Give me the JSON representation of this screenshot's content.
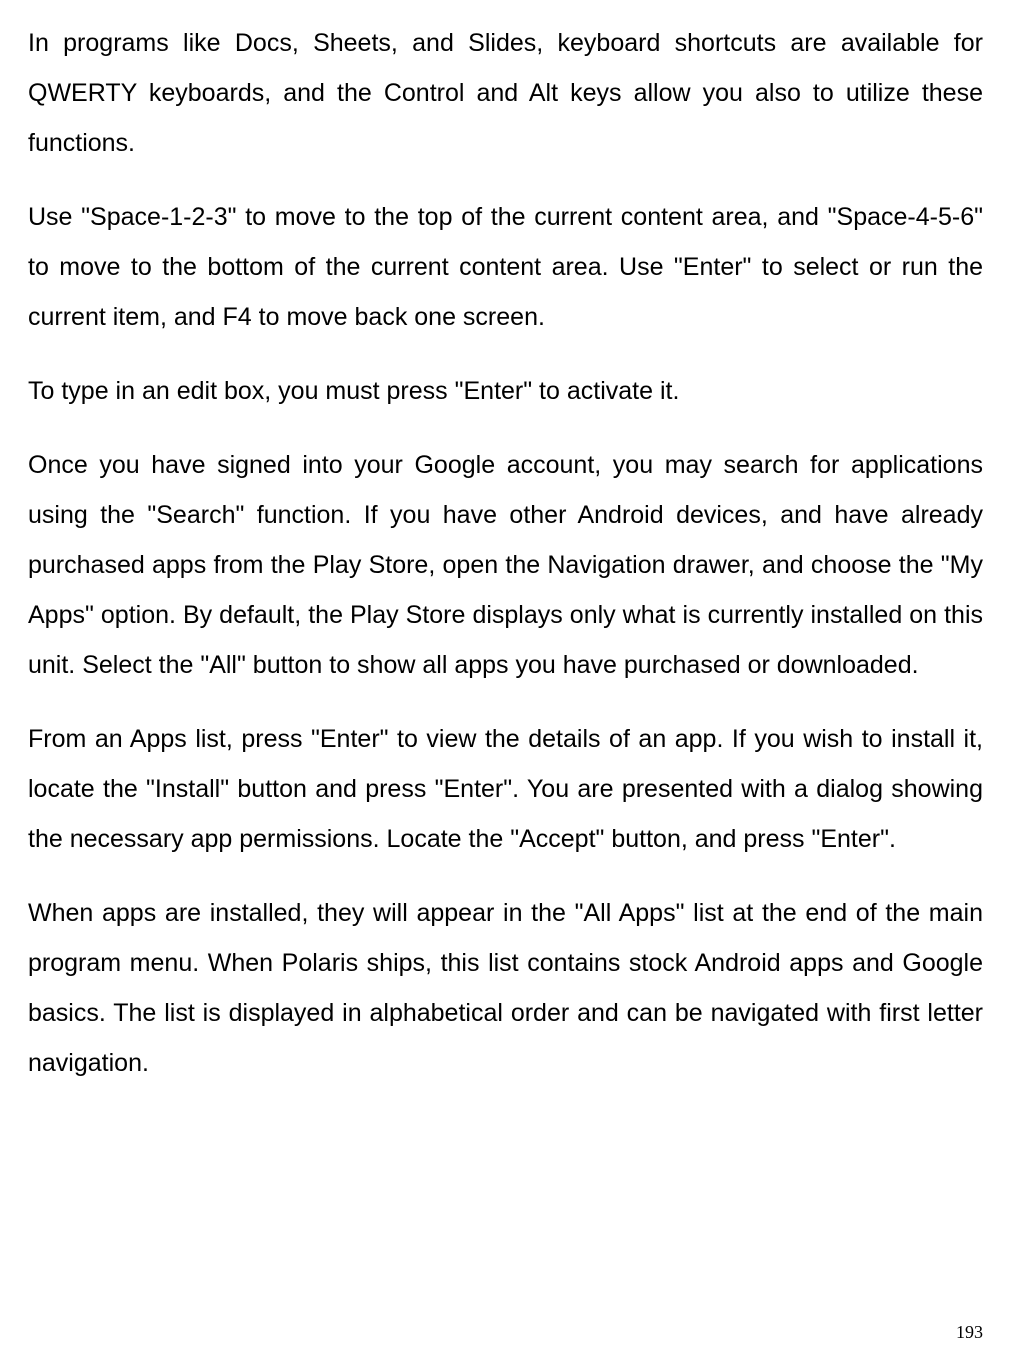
{
  "paragraphs": [
    "In programs like Docs, Sheets, and Slides, keyboard shortcuts are available for QWERTY keyboards, and the Control and Alt keys allow you also to utilize these functions.",
    "Use \"Space-1-2-3\" to move to the top of the current content area, and \"Space-4-5-6\" to move to the bottom of the current content area. Use \"Enter\" to select or run the current item, and F4 to move back one screen.",
    "To type in an edit box, you must press \"Enter\" to activate it.",
    "Once you have signed into your Google account, you may search for applications using the \"Search\" function. If you have other Android devices, and have already purchased apps from the Play Store, open the Navigation drawer, and choose the \"My Apps\" option. By default, the Play Store displays only what is currently installed on this unit. Select the \"All\" button to show all apps you have purchased or downloaded.",
    "From an Apps list, press \"Enter\" to view the details of an app. If you wish to install it, locate the \"Install\" button and press \"Enter\". You are presented with a dialog showing the necessary app permissions. Locate the \"Accept\" button, and press \"Enter\".",
    "When apps are installed, they will appear in the \"All Apps\" list at the end of the main program menu. When Polaris ships, this list contains stock Android apps and Google basics. The list is displayed in alphabetical order and can be navigated with first letter navigation."
  ],
  "page_number": "193"
}
